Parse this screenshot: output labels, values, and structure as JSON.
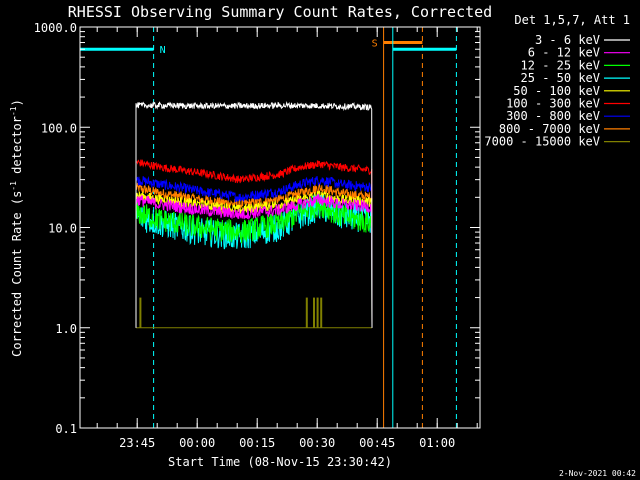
{
  "chart_data": {
    "type": "line",
    "title": "RHESSI Observing Summary Count Rates, Corrected",
    "xlabel": "Start Time (08-Nov-15 23:30:42)",
    "ylabel_main": "Corrected Count Rate (s",
    "ylabel_sup1": "-1",
    "ylabel_mid": " detector",
    "ylabel_sup2": "-1",
    "ylabel_end": ")",
    "y_scale": "log",
    "ylim": [
      0.1,
      1000
    ],
    "y_ticks": [
      {
        "value": 0.1,
        "label": "0.1"
      },
      {
        "value": 1,
        "label": "1.0"
      },
      {
        "value": 10,
        "label": "10.0"
      },
      {
        "value": 100,
        "label": "100.0"
      },
      {
        "value": 1000,
        "label": "1000.0"
      }
    ],
    "x_unit": "minutes since 23:30:42",
    "xlim": [
      0,
      100
    ],
    "x_ticks": [
      {
        "value": 14.3,
        "label": "23:45"
      },
      {
        "value": 29.3,
        "label": "00:00"
      },
      {
        "value": 44.3,
        "label": "00:15"
      },
      {
        "value": 59.3,
        "label": "00:30"
      },
      {
        "value": 74.3,
        "label": "00:45"
      },
      {
        "value": 89.3,
        "label": "01:00"
      }
    ],
    "legend_title": "Det 1,5,7, Att 1",
    "legend_position": "right",
    "series": [
      {
        "name": "3 - 6 keV",
        "color": "#ffffff",
        "x": [
          14,
          20,
          30,
          40,
          50,
          60,
          70,
          73
        ],
        "y": [
          165,
          165,
          163,
          163,
          165,
          164,
          160,
          158
        ],
        "noise": 0.03
      },
      {
        "name": "6 - 12 keV",
        "color": "#ff00ff",
        "x": [
          14,
          20,
          30,
          40,
          50,
          55,
          60,
          65,
          73
        ],
        "y": [
          19,
          17,
          15,
          13.5,
          15,
          17,
          19,
          17,
          16
        ],
        "noise": 0.06
      },
      {
        "name": "12 - 25 keV",
        "color": "#00ff00",
        "x": [
          14,
          20,
          30,
          40,
          50,
          55,
          60,
          65,
          73
        ],
        "y": [
          14,
          12,
          10,
          9,
          11,
          14,
          17,
          13,
          11
        ],
        "noise": 0.12
      },
      {
        "name": "25 - 50 keV",
        "color": "#00ffff",
        "x": [
          14,
          20,
          30,
          40,
          50,
          55,
          60,
          65,
          73
        ],
        "y": [
          13,
          11,
          9,
          8,
          10,
          13,
          16,
          13,
          12
        ],
        "noise": 0.14
      },
      {
        "name": "50 - 100 keV",
        "color": "#ffff00",
        "x": [
          14,
          20,
          30,
          40,
          50,
          55,
          60,
          65,
          73
        ],
        "y": [
          21,
          19,
          17,
          15,
          17,
          19,
          21,
          19,
          18
        ],
        "noise": 0.05
      },
      {
        "name": "100 - 300 keV",
        "color": "#ff0000",
        "x": [
          14,
          20,
          30,
          40,
          50,
          55,
          60,
          65,
          73
        ],
        "y": [
          45,
          40,
          35,
          30,
          34,
          40,
          43,
          40,
          37
        ],
        "noise": 0.04
      },
      {
        "name": "300 - 800 keV",
        "color": "#0000ff",
        "x": [
          14,
          20,
          30,
          40,
          50,
          55,
          60,
          65,
          73
        ],
        "y": [
          30,
          27,
          23,
          20,
          23,
          27,
          30,
          27,
          25
        ],
        "noise": 0.05
      },
      {
        "name": "800 - 7000 keV",
        "color": "#ff7f00",
        "x": [
          14,
          20,
          30,
          40,
          50,
          55,
          60,
          65,
          73
        ],
        "y": [
          25,
          22,
          19,
          17,
          19,
          22,
          25,
          22,
          20
        ],
        "noise": 0.05
      },
      {
        "name": "7000 - 15000 keV",
        "color": "#808000",
        "x": [
          14,
          18,
          30,
          42,
          50,
          55,
          60,
          65,
          73
        ],
        "y": [
          1,
          1,
          1,
          1,
          1,
          1,
          1,
          1,
          1
        ],
        "noise": 0
      }
    ],
    "attenuator_spikes": {
      "color": "#808000",
      "x": [
        15.1,
        56.7,
        58.5,
        59.4,
        60.3
      ],
      "y_top": [
        2,
        2,
        2,
        2,
        2
      ]
    },
    "annotations": [
      {
        "label": "N",
        "color": "#00ffff",
        "segment_x": [
          0,
          18.4
        ],
        "segment_y": 600,
        "solid_x": 0,
        "dashed_x": 18.4
      },
      {
        "label": "S",
        "color": "#ff7f00",
        "segment_x": [
          75.9,
          85.6
        ],
        "segment_y": 700,
        "solid_x": 75.9,
        "dashed_x": 85.6
      }
    ],
    "night_segment": {
      "color": "#00ffff",
      "x": [
        78.2,
        94.1
      ],
      "y": 600,
      "solid_x": 78.2,
      "dashed_x": 94.1
    },
    "grid": false
  },
  "footer_date": "2-Nov-2021 00:42"
}
